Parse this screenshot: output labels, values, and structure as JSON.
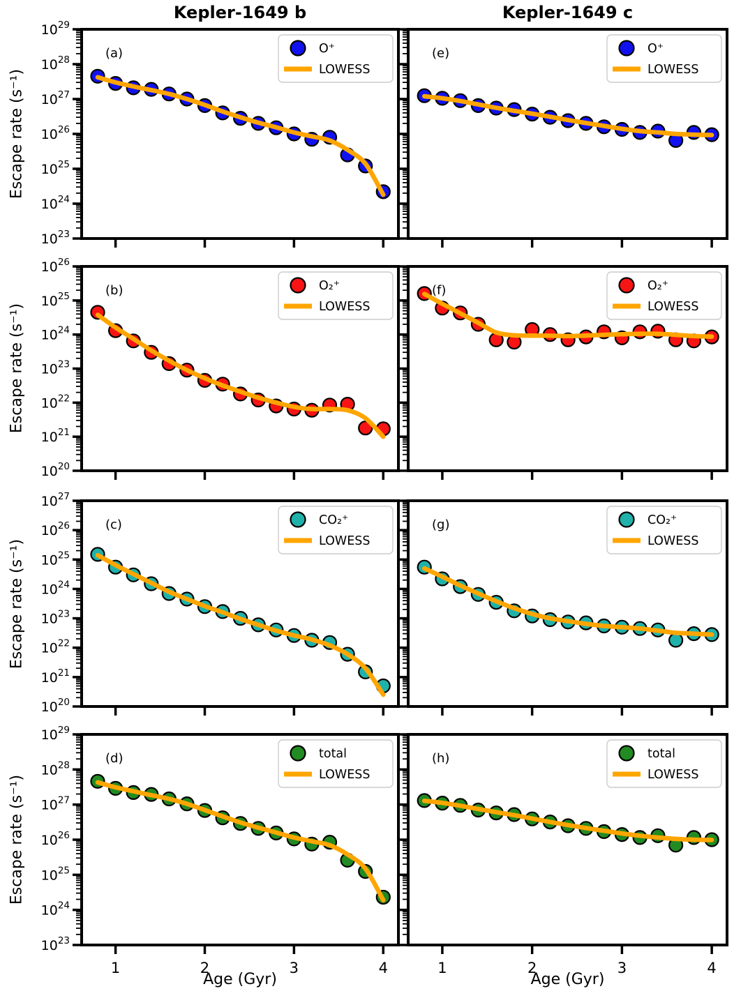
{
  "figure": {
    "column_titles": [
      "Kepler-1649 b",
      "Kepler-1649 c"
    ],
    "xlabel": "Age (Gyr)",
    "ylabel": "Escape rate (s⁻¹)",
    "background_color": "#ffffff",
    "axis_color": "#000000",
    "lowess_color": "#ffa500",
    "legend_border_color": "#cccccc"
  },
  "chart_data": [
    {
      "type": "scatter",
      "panel_label": "(a)",
      "row": 0,
      "col": 0,
      "series_name": "O⁺",
      "lowess_name": "LOWESS",
      "marker_color": "#1212f0",
      "lowess_color": "#ffa500",
      "xlim": [
        0.62,
        4.17
      ],
      "x_ticks": [
        1,
        2,
        3,
        4
      ],
      "ylim_exp": [
        23,
        29
      ],
      "y_tick_labels_visible": true,
      "x_tick_labels_visible": false,
      "legend_position": "upper right",
      "ages_gyr": [
        0.8,
        1.0,
        1.2,
        1.4,
        1.6,
        1.8,
        2.0,
        2.2,
        2.4,
        2.6,
        2.8,
        3.0,
        3.2,
        3.4,
        3.6,
        3.8,
        4.0
      ],
      "values": [
        4.5e+27,
        2.8e+27,
        2.1e+27,
        1.9e+27,
        1.4e+27,
        1e+27,
        6.5e+26,
        4e+26,
        2.8e+26,
        2e+26,
        1.5e+26,
        1e+26,
        7e+25,
        8e+25,
        2.5e+25,
        1.2e+25,
        2.2e+24
      ],
      "lowess": [
        4.2e+27,
        3e+27,
        2.3e+27,
        1.8e+27,
        1.4e+27,
        1e+27,
        6.8e+26,
        4.4e+26,
        3e+26,
        2.1e+26,
        1.55e+26,
        1.1e+26,
        8.5e+25,
        6.5e+25,
        3.5e+25,
        1.4e+25,
        1.8e+24
      ]
    },
    {
      "type": "scatter",
      "panel_label": "(b)",
      "row": 1,
      "col": 0,
      "series_name": "O₂⁺",
      "lowess_name": "LOWESS",
      "marker_color": "#f71414",
      "lowess_color": "#ffa500",
      "xlim": [
        0.62,
        4.17
      ],
      "x_ticks": [
        1,
        2,
        3,
        4
      ],
      "ylim_exp": [
        20,
        26
      ],
      "y_tick_labels_visible": true,
      "x_tick_labels_visible": false,
      "legend_position": "upper right",
      "ages_gyr": [
        0.8,
        1.0,
        1.2,
        1.4,
        1.6,
        1.8,
        2.0,
        2.2,
        2.4,
        2.6,
        2.8,
        3.0,
        3.2,
        3.4,
        3.6,
        3.8,
        4.0
      ],
      "values": [
        4.5e+24,
        1.3e+24,
        6.5e+23,
        3e+23,
        1.4e+23,
        9e+22,
        4.5e+22,
        3.5e+22,
        1.8e+22,
        1.2e+22,
        8e+21,
        6.5e+21,
        6e+21,
        8.5e+21,
        9e+21,
        1.8e+21,
        1.7e+21
      ],
      "lowess": [
        3.8e+24,
        1.6e+24,
        7.5e+23,
        3.4e+23,
        1.7e+23,
        9e+22,
        5.2e+22,
        3.2e+22,
        2.1e+22,
        1.4e+22,
        1e+22,
        7.5e+21,
        6.5e+21,
        6.5e+21,
        6e+21,
        3.5e+21,
        1e+21
      ]
    },
    {
      "type": "scatter",
      "panel_label": "(c)",
      "row": 2,
      "col": 0,
      "series_name": "CO₂⁺",
      "lowess_name": "LOWESS",
      "marker_color": "#20b2aa",
      "lowess_color": "#ffa500",
      "xlim": [
        0.62,
        4.17
      ],
      "x_ticks": [
        1,
        2,
        3,
        4
      ],
      "ylim_exp": [
        20,
        27
      ],
      "y_tick_labels_visible": true,
      "x_tick_labels_visible": false,
      "legend_position": "upper right",
      "ages_gyr": [
        0.8,
        1.0,
        1.2,
        1.4,
        1.6,
        1.8,
        2.0,
        2.2,
        2.4,
        2.6,
        2.8,
        3.0,
        3.2,
        3.4,
        3.6,
        3.8,
        4.0
      ],
      "values": [
        1.5e+25,
        5.5e+24,
        3e+24,
        1.5e+24,
        7e+23,
        4.5e+23,
        2.5e+23,
        1.7e+23,
        1e+23,
        6e+22,
        4e+22,
        2.6e+22,
        1.8e+22,
        1.5e+22,
        6e+21,
        1.5e+21,
        5e+20
      ],
      "lowess": [
        1.4e+25,
        6.5e+24,
        3.2e+24,
        1.6e+24,
        8e+23,
        4.5e+23,
        2.6e+23,
        1.6e+23,
        9.5e+22,
        6e+22,
        3.8e+22,
        2.6e+22,
        1.9e+22,
        1.2e+22,
        6e+21,
        2e+21,
        2.5e+20
      ]
    },
    {
      "type": "scatter",
      "panel_label": "(d)",
      "row": 3,
      "col": 0,
      "series_name": "total",
      "lowess_name": "LOWESS",
      "marker_color": "#228b22",
      "lowess_color": "#ffa500",
      "xlim": [
        0.62,
        4.17
      ],
      "x_ticks": [
        1,
        2,
        3,
        4
      ],
      "ylim_exp": [
        23,
        29
      ],
      "y_tick_labels_visible": true,
      "x_tick_labels_visible": true,
      "legend_position": "upper right",
      "ages_gyr": [
        0.8,
        1.0,
        1.2,
        1.4,
        1.6,
        1.8,
        2.0,
        2.2,
        2.4,
        2.6,
        2.8,
        3.0,
        3.2,
        3.4,
        3.6,
        3.8,
        4.0
      ],
      "values": [
        4.6e+27,
        2.9e+27,
        2.2e+27,
        1.95e+27,
        1.45e+27,
        1.05e+27,
        6.8e+26,
        4.2e+26,
        2.9e+26,
        2.1e+26,
        1.55e+26,
        1.05e+26,
        7.5e+25,
        8.5e+25,
        2.6e+25,
        1.25e+25,
        2.3e+24
      ],
      "lowess": [
        4.3e+27,
        3.1e+27,
        2.4e+27,
        1.85e+27,
        1.45e+27,
        1.05e+27,
        7e+26,
        4.6e+26,
        3.1e+26,
        2.2e+26,
        1.6e+26,
        1.15e+26,
        9e+25,
        7e+25,
        3.8e+25,
        1.5e+25,
        1.9e+24
      ]
    },
    {
      "type": "scatter",
      "panel_label": "(e)",
      "row": 0,
      "col": 1,
      "series_name": "O⁺",
      "lowess_name": "LOWESS",
      "marker_color": "#1212f0",
      "lowess_color": "#ffa500",
      "xlim": [
        0.62,
        4.17
      ],
      "x_ticks": [
        1,
        2,
        3,
        4
      ],
      "ylim_exp": [
        23,
        29
      ],
      "y_tick_labels_visible": false,
      "x_tick_labels_visible": false,
      "legend_position": "upper right",
      "ages_gyr": [
        0.8,
        1.0,
        1.2,
        1.4,
        1.6,
        1.8,
        2.0,
        2.2,
        2.4,
        2.6,
        2.8,
        3.0,
        3.2,
        3.4,
        3.6,
        3.8,
        4.0
      ],
      "values": [
        1.25e+27,
        1.05e+27,
        9e+26,
        6.5e+26,
        5.5e+26,
        5e+26,
        3.7e+26,
        3e+26,
        2.4e+26,
        2e+26,
        1.6e+26,
        1.35e+26,
        1.1e+26,
        1.2e+26,
        6.5e+25,
        1.1e+26,
        9.5e+25
      ],
      "lowess": [
        1.2e+27,
        1.05e+27,
        8.8e+26,
        7e+26,
        5.6e+26,
        4.6e+26,
        3.8e+26,
        3.1e+26,
        2.5e+26,
        2.05e+26,
        1.7e+26,
        1.4e+26,
        1.2e+26,
        1.1e+26,
        1e+26,
        9.5e+25,
        9.3e+25
      ]
    },
    {
      "type": "scatter",
      "panel_label": "(f)",
      "row": 1,
      "col": 1,
      "series_name": "O₂⁺",
      "lowess_name": "LOWESS",
      "marker_color": "#f71414",
      "lowess_color": "#ffa500",
      "xlim": [
        0.62,
        4.17
      ],
      "x_ticks": [
        1,
        2,
        3,
        4
      ],
      "ylim_exp": [
        20,
        26
      ],
      "y_tick_labels_visible": false,
      "x_tick_labels_visible": false,
      "legend_position": "upper right",
      "ages_gyr": [
        0.8,
        1.0,
        1.2,
        1.4,
        1.6,
        1.8,
        2.0,
        2.2,
        2.4,
        2.6,
        2.8,
        3.0,
        3.2,
        3.4,
        3.6,
        3.8,
        4.0
      ],
      "values": [
        1.6e+25,
        6e+24,
        4.3e+24,
        2e+24,
        7e+23,
        6e+23,
        1.4e+24,
        1e+24,
        7e+23,
        8.5e+23,
        1.2e+24,
        8e+23,
        1.2e+24,
        1.25e+24,
        7e+23,
        6.5e+23,
        8.5e+23
      ],
      "lowess": [
        1.55e+25,
        8e+24,
        4.2e+24,
        2.2e+24,
        1.15e+24,
        9.5e+23,
        9.3e+23,
        9.2e+23,
        9e+23,
        9.3e+23,
        9.8e+23,
        1.02e+24,
        1.05e+24,
        1.05e+24,
        9.8e+23,
        9e+23,
        8.7e+23
      ]
    },
    {
      "type": "scatter",
      "panel_label": "(g)",
      "row": 2,
      "col": 1,
      "series_name": "CO₂⁺",
      "lowess_name": "LOWESS",
      "marker_color": "#20b2aa",
      "lowess_color": "#ffa500",
      "xlim": [
        0.62,
        4.17
      ],
      "x_ticks": [
        1,
        2,
        3,
        4
      ],
      "ylim_exp": [
        20,
        27
      ],
      "y_tick_labels_visible": false,
      "x_tick_labels_visible": false,
      "legend_position": "upper right",
      "ages_gyr": [
        0.8,
        1.0,
        1.2,
        1.4,
        1.6,
        1.8,
        2.0,
        2.2,
        2.4,
        2.6,
        2.8,
        3.0,
        3.2,
        3.4,
        3.6,
        3.8,
        4.0
      ],
      "values": [
        5.5e+24,
        2.2e+24,
        1.2e+24,
        6.5e+23,
        3.5e+23,
        1.8e+23,
        1.2e+23,
        9e+22,
        7.5e+22,
        7e+22,
        5.5e+22,
        5e+22,
        4.5e+22,
        4e+22,
        1.8e+22,
        3e+22,
        2.8e+22
      ],
      "lowess": [
        5e+24,
        2.6e+24,
        1.3e+24,
        7e+23,
        3.8e+23,
        2.2e+23,
        1.4e+23,
        1e+23,
        8e+22,
        6.5e+22,
        5.5e+22,
        5e+22,
        4.5e+22,
        3.8e+22,
        3.2e+22,
        3e+22,
        2.8e+22
      ]
    },
    {
      "type": "scatter",
      "panel_label": "(h)",
      "row": 3,
      "col": 1,
      "series_name": "total",
      "lowess_name": "LOWESS",
      "marker_color": "#228b22",
      "lowess_color": "#ffa500",
      "xlim": [
        0.62,
        4.17
      ],
      "x_ticks": [
        1,
        2,
        3,
        4
      ],
      "ylim_exp": [
        23,
        29
      ],
      "y_tick_labels_visible": false,
      "x_tick_labels_visible": true,
      "legend_position": "upper right",
      "ages_gyr": [
        0.8,
        1.0,
        1.2,
        1.4,
        1.6,
        1.8,
        2.0,
        2.2,
        2.4,
        2.6,
        2.8,
        3.0,
        3.2,
        3.4,
        3.6,
        3.8,
        4.0
      ],
      "values": [
        1.3e+27,
        1.1e+27,
        9.5e+26,
        7e+26,
        5.8e+26,
        5.2e+26,
        3.9e+26,
        3.2e+26,
        2.5e+26,
        2.1e+26,
        1.7e+26,
        1.4e+26,
        1.15e+26,
        1.3e+26,
        7e+25,
        1.15e+26,
        1e+26
      ],
      "lowess": [
        1.28e+27,
        1.12e+27,
        9.3e+26,
        7.5e+26,
        6.1e+26,
        5e+26,
        4e+26,
        3.2e+26,
        2.6e+26,
        2.15e+26,
        1.8e+26,
        1.5e+26,
        1.3e+26,
        1.15e+26,
        1.05e+26,
        1e+26,
        9.8e+25
      ]
    }
  ]
}
